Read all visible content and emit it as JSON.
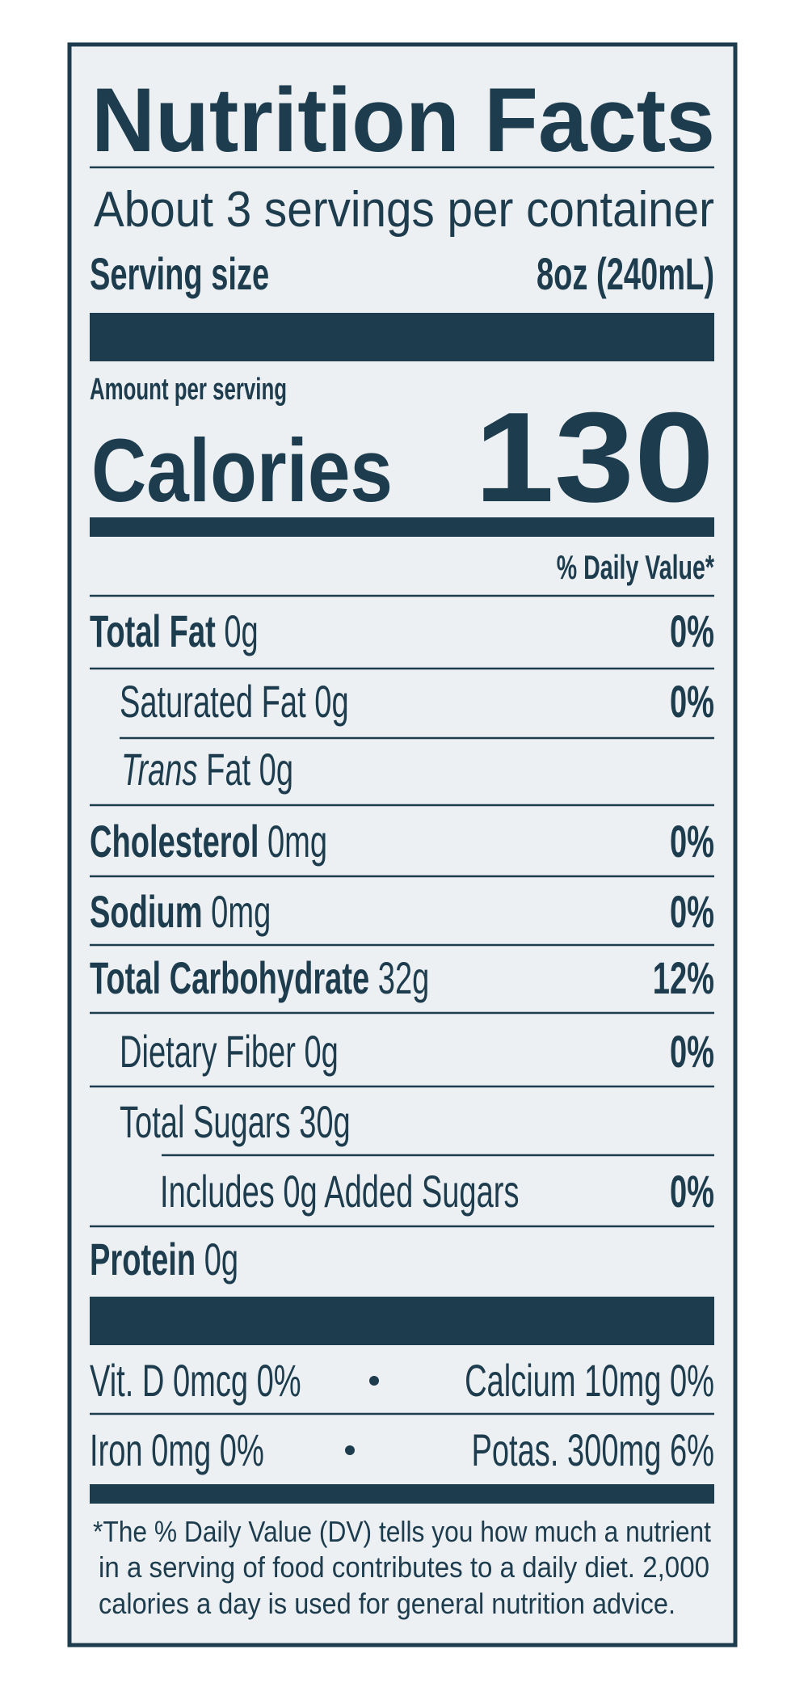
{
  "title": "Nutrition Facts",
  "servings_per_container": "About 3 servings per container",
  "serving_size": {
    "label": "Serving size",
    "value": "8oz (240mL)"
  },
  "amount_per_serving": "Amount per serving",
  "calories": {
    "label": "Calories",
    "value": "130"
  },
  "daily_value_header": "% Daily Value*",
  "nutrients": [
    {
      "name": "Total Fat",
      "amount": "0g",
      "daily_value": "0%"
    },
    {
      "name": "Saturated Fat",
      "amount": "0g",
      "daily_value": "0%"
    },
    {
      "name_italic": "Trans",
      "name": "Fat",
      "amount": "0g"
    },
    {
      "name": "Cholesterol",
      "amount": "0mg",
      "daily_value": "0%"
    },
    {
      "name": "Sodium",
      "amount": "0mg",
      "daily_value": "0%"
    },
    {
      "name": "Total Carbohydrate",
      "amount": "32g",
      "daily_value": "12%"
    },
    {
      "name": "Dietary Fiber",
      "amount": "0g",
      "daily_value": "0%"
    },
    {
      "name": "Total Sugars",
      "amount": "30g"
    },
    {
      "name": "Includes 0g Added Sugars",
      "daily_value": "0%"
    },
    {
      "name": "Protein",
      "amount": "0g"
    }
  ],
  "vitamins_minerals": [
    "Vit. D 0mcg 0%",
    "Calcium 10mg 0%",
    "Iron 0mg 0%",
    "Potas. 300mg 6%"
  ],
  "footnote": [
    "*The % Daily Value (DV) tells you how much a nutrient",
    "in a serving of food contributes to a daily diet. 2,000",
    "calories a day is used for general nutrition advice."
  ]
}
